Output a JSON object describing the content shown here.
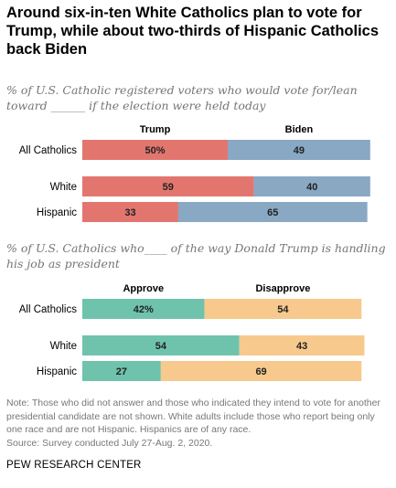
{
  "title": "Around six-in-ten White Catholics plan to vote for Trump, while about two-thirds of Hispanic Catholics back Biden",
  "footer": "PEW RESEARCH CENTER",
  "note": "Note: Those who did not answer and those who indicated they intend to vote for another presidential candidate are not shown. White adults include those who report being only one race and are not Hispanic. Hispanics are of any race.",
  "source": "Source: Survey conducted July 27-Aug. 2, 2020.",
  "chart_data": [
    {
      "type": "bar",
      "orientation": "horizontal",
      "stacked": true,
      "subtitle": "% of U.S. Catholic registered voters who would vote for/lean toward ______ if the election were held today",
      "categories": [
        "All Catholics",
        "White",
        "Hispanic"
      ],
      "series": [
        {
          "name": "Trump",
          "values": [
            50,
            59,
            33
          ],
          "labels": [
            "50%",
            "59",
            "33"
          ],
          "color": "#e2766f"
        },
        {
          "name": "Biden",
          "values": [
            49,
            40,
            65
          ],
          "labels": [
            "49",
            "40",
            "65"
          ],
          "color": "#88a8c4"
        }
      ],
      "xlim": [
        0,
        100
      ]
    },
    {
      "type": "bar",
      "orientation": "horizontal",
      "stacked": true,
      "subtitle": "% of U.S. Catholics who____ of the way Donald Trump is handling his job as president",
      "categories": [
        "All Catholics",
        "White",
        "Hispanic"
      ],
      "series": [
        {
          "name": "Approve",
          "values": [
            42,
            54,
            27
          ],
          "labels": [
            "42%",
            "54",
            "27"
          ],
          "color": "#6fc3ad"
        },
        {
          "name": "Disapprove",
          "values": [
            54,
            43,
            69
          ],
          "labels": [
            "54",
            "43",
            "69"
          ],
          "color": "#f7c98d"
        }
      ],
      "xlim": [
        0,
        100
      ]
    }
  ]
}
